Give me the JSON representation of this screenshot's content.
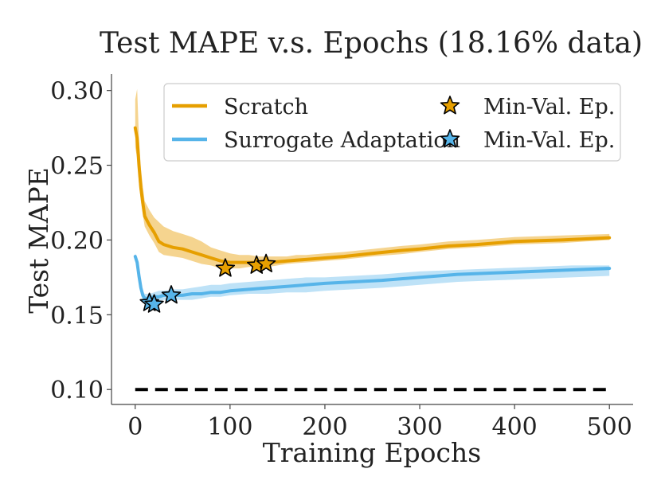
{
  "chart_data": {
    "type": "line",
    "title": "Test MAPE v.s. Epochs (18.16% data)",
    "xlabel": "Training Epochs",
    "ylabel": "Test MAPE",
    "xlim": [
      -25,
      525
    ],
    "ylim": [
      0.09,
      0.311
    ],
    "x_ticks": [
      0,
      100,
      200,
      300,
      400,
      500
    ],
    "x_tick_labels": [
      "0",
      "100",
      "200",
      "300",
      "400",
      "500"
    ],
    "y_ticks": [
      0.1,
      0.15,
      0.2,
      0.25,
      0.3
    ],
    "y_tick_labels": [
      "0.10",
      "0.15",
      "0.20",
      "0.25",
      "0.30"
    ],
    "grid": false,
    "legend_position": "top-right",
    "series": [
      {
        "name": "Scratch",
        "color": "#E69F00",
        "band_color": "#F2C56A",
        "x": [
          0,
          2,
          4,
          6,
          8,
          10,
          15,
          20,
          25,
          30,
          40,
          50,
          60,
          70,
          80,
          90,
          100,
          110,
          120,
          130,
          140,
          150,
          160,
          170,
          180,
          200,
          220,
          250,
          280,
          300,
          330,
          360,
          400,
          450,
          500
        ],
        "mean": [
          0.275,
          0.268,
          0.25,
          0.235,
          0.225,
          0.216,
          0.21,
          0.205,
          0.199,
          0.197,
          0.195,
          0.194,
          0.192,
          0.19,
          0.188,
          0.186,
          0.185,
          0.185,
          0.185,
          0.185,
          0.185,
          0.1855,
          0.186,
          0.1865,
          0.187,
          0.188,
          0.189,
          0.191,
          0.193,
          0.194,
          0.196,
          0.197,
          0.199,
          0.2,
          0.2015
        ],
        "low": [
          0.262,
          0.255,
          0.238,
          0.226,
          0.217,
          0.209,
          0.203,
          0.198,
          0.192,
          0.19,
          0.189,
          0.188,
          0.186,
          0.184,
          0.183,
          0.181,
          0.181,
          0.181,
          0.182,
          0.182,
          0.182,
          0.183,
          0.184,
          0.1845,
          0.185,
          0.186,
          0.187,
          0.189,
          0.1905,
          0.192,
          0.194,
          0.195,
          0.197,
          0.198,
          0.2
        ],
        "high": [
          0.294,
          0.301,
          0.268,
          0.248,
          0.236,
          0.226,
          0.22,
          0.215,
          0.212,
          0.209,
          0.206,
          0.204,
          0.202,
          0.199,
          0.195,
          0.193,
          0.191,
          0.19,
          0.19,
          0.189,
          0.189,
          0.189,
          0.189,
          0.19,
          0.19,
          0.191,
          0.192,
          0.194,
          0.196,
          0.197,
          0.199,
          0.2,
          0.202,
          0.203,
          0.204
        ],
        "min_val_epochs": [
          {
            "x": 95,
            "y": 0.181
          },
          {
            "x": 128,
            "y": 0.183
          },
          {
            "x": 138,
            "y": 0.184
          }
        ]
      },
      {
        "name": "Surrogate Adaptation",
        "color": "#56B4E9",
        "band_color": "#A8D8F4",
        "x": [
          0,
          2,
          4,
          6,
          8,
          10,
          15,
          20,
          25,
          30,
          40,
          50,
          60,
          70,
          80,
          90,
          100,
          120,
          140,
          160,
          180,
          200,
          230,
          260,
          300,
          340,
          380,
          420,
          460,
          500
        ],
        "mean": [
          0.189,
          0.185,
          0.176,
          0.168,
          0.163,
          0.161,
          0.161,
          0.162,
          0.162,
          0.163,
          0.163,
          0.163,
          0.164,
          0.164,
          0.165,
          0.165,
          0.166,
          0.167,
          0.168,
          0.169,
          0.17,
          0.171,
          0.172,
          0.173,
          0.175,
          0.177,
          0.178,
          0.179,
          0.18,
          0.181
        ],
        "low": [
          0.186,
          0.182,
          0.172,
          0.164,
          0.159,
          0.157,
          0.157,
          0.158,
          0.159,
          0.16,
          0.16,
          0.16,
          0.16,
          0.161,
          0.162,
          0.162,
          0.163,
          0.164,
          0.164,
          0.165,
          0.165,
          0.166,
          0.167,
          0.168,
          0.17,
          0.172,
          0.173,
          0.174,
          0.175,
          0.176
        ],
        "high": [
          0.191,
          0.188,
          0.18,
          0.171,
          0.166,
          0.164,
          0.164,
          0.165,
          0.166,
          0.166,
          0.167,
          0.167,
          0.168,
          0.169,
          0.17,
          0.17,
          0.171,
          0.172,
          0.173,
          0.174,
          0.175,
          0.175,
          0.176,
          0.177,
          0.179,
          0.18,
          0.181,
          0.182,
          0.183,
          0.183
        ],
        "min_val_epochs": [
          {
            "x": 15,
            "y": 0.158
          },
          {
            "x": 20,
            "y": 0.157
          },
          {
            "x": 38,
            "y": 0.163
          }
        ]
      }
    ],
    "reference_line": {
      "x": [
        0,
        500
      ],
      "y": 0.1,
      "style": "dashed",
      "color": "#000000"
    },
    "legend": [
      {
        "label": "Scratch",
        "marker": "line",
        "color": "#E69F00"
      },
      {
        "label": "Surrogate Adaptation",
        "marker": "line",
        "color": "#56B4E9"
      },
      {
        "label": "Min-Val. Ep.",
        "marker": "star",
        "color": "#E69F00"
      },
      {
        "label": "Min-Val. Ep.",
        "marker": "star",
        "color": "#56B4E9"
      }
    ]
  }
}
